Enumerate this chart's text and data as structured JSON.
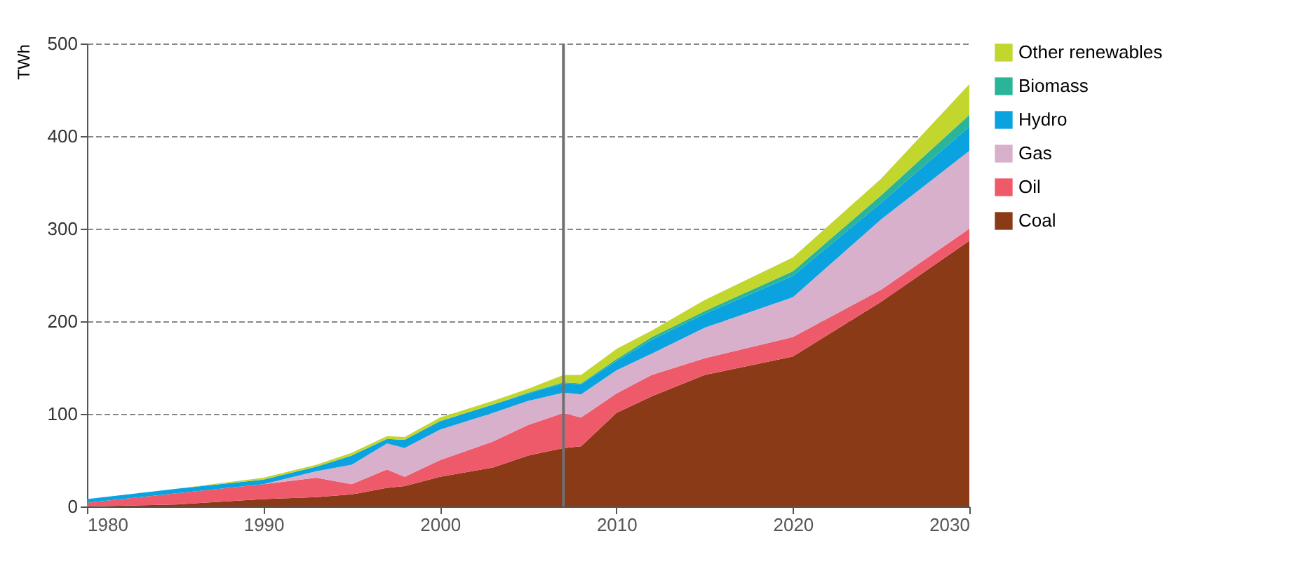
{
  "chart_data": {
    "type": "area",
    "stacked": true,
    "ylabel": "TWh",
    "x": [
      1980,
      1985,
      1990,
      1993,
      1995,
      1997,
      1998,
      2000,
      2003,
      2005,
      2007,
      2008,
      2010,
      2012,
      2015,
      2020,
      2025,
      2030
    ],
    "xlim": [
      1980,
      2030
    ],
    "xticks": [
      1980,
      1990,
      2000,
      2010,
      2020,
      2030
    ],
    "ylim": [
      0,
      500
    ],
    "yticks": [
      0,
      100,
      200,
      300,
      400,
      500
    ],
    "grid": "y",
    "legend": "right",
    "ref_lines": [
      {
        "axis": "x",
        "value": 2007,
        "color": "#707070"
      }
    ],
    "series": [
      {
        "name": "Coal",
        "color": "#8a3a17",
        "values": [
          0,
          2,
          8,
          10,
          13,
          20,
          22,
          32,
          42,
          55,
          63,
          65,
          101,
          119,
          142,
          162,
          221,
          287
        ]
      },
      {
        "name": "Oil",
        "color": "#ef5a6a",
        "values": [
          4,
          12,
          16,
          21,
          11,
          20,
          10,
          18,
          28,
          33,
          38,
          31,
          21,
          23,
          18,
          21,
          13,
          13
        ]
      },
      {
        "name": "Gas",
        "color": "#d8b0cc",
        "values": [
          0,
          0,
          0,
          7,
          21,
          28,
          31,
          33,
          31,
          26,
          22,
          25,
          25,
          23,
          33,
          43,
          76,
          84
        ]
      },
      {
        "name": "Hydro",
        "color": "#0aa3e0",
        "values": [
          4,
          5,
          5,
          5,
          10,
          5,
          9,
          9,
          9,
          8,
          10,
          11,
          10,
          15,
          15,
          23,
          18,
          26
        ]
      },
      {
        "name": "Biomass",
        "color": "#2ab59a",
        "values": [
          0,
          0,
          0,
          0,
          0,
          0,
          0,
          0,
          0,
          1,
          1,
          1,
          2,
          3,
          3,
          5,
          8,
          13
        ]
      },
      {
        "name": "Other renewables",
        "color": "#c2d62e",
        "values": [
          0,
          0,
          2,
          2,
          3,
          3,
          3,
          4,
          4,
          4,
          8,
          9,
          11,
          7,
          12,
          15,
          18,
          33
        ]
      }
    ]
  }
}
